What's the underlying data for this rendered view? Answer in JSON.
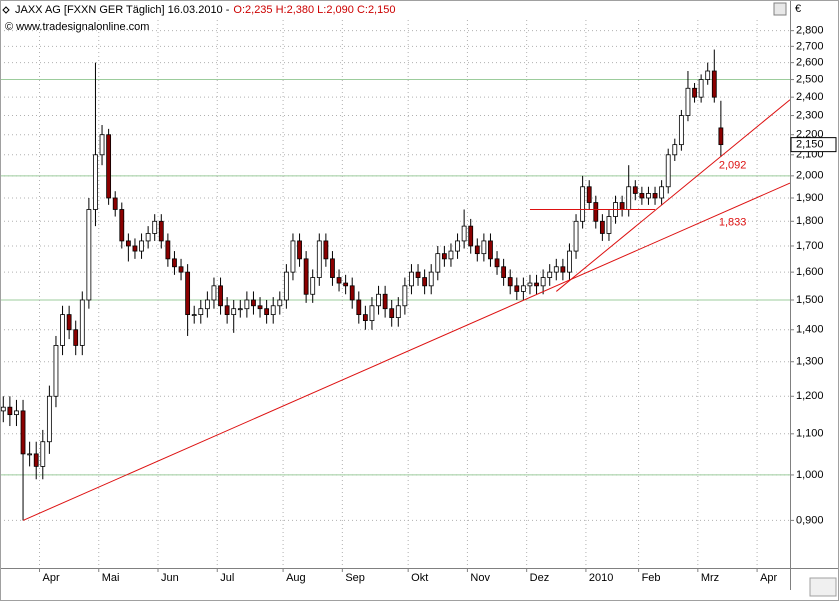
{
  "header": {
    "symbol": "JAXX AG [FXXN GER  Täglich] 16.03.2010 -",
    "ohlc": "O:2,235 H:2,380 L:2,090 C:2,150",
    "copyright": "© www.tradesignalonline.com",
    "currency": "€"
  },
  "chart_data": {
    "type": "candlestick",
    "categories": [
      null,
      null,
      null,
      null,
      null,
      null,
      "Apr",
      null,
      null,
      null,
      null,
      null,
      null,
      null,
      null,
      "Mai",
      null,
      null,
      null,
      null,
      null,
      null,
      null,
      null,
      "Jun",
      null,
      null,
      null,
      null,
      null,
      null,
      null,
      null,
      "Jul",
      null,
      null,
      null,
      null,
      null,
      null,
      null,
      null,
      null,
      "Aug",
      null,
      null,
      null,
      null,
      null,
      null,
      null,
      null,
      "Sep",
      null,
      null,
      null,
      null,
      null,
      null,
      null,
      null,
      null,
      "Okt",
      null,
      null,
      null,
      null,
      null,
      null,
      null,
      null,
      "Nov",
      null,
      null,
      null,
      null,
      null,
      null,
      null,
      null,
      "Dez",
      null,
      null,
      null,
      null,
      null,
      null,
      null,
      null,
      "2010",
      null,
      null,
      null,
      null,
      null,
      null,
      null,
      "Feb",
      null,
      null,
      null,
      null,
      null,
      null,
      null,
      null,
      "Mrz",
      null,
      null,
      null,
      null,
      null,
      null,
      null,
      null,
      "Apr",
      null,
      null,
      null,
      null
    ],
    "open": [
      1.16,
      1.17,
      1.15,
      1.16,
      1.05,
      1.05,
      1.02,
      1.08,
      1.2,
      1.35,
      1.45,
      1.4,
      1.35,
      1.5,
      1.85,
      2.1,
      2.2,
      1.9,
      1.85,
      1.72,
      1.7,
      1.68,
      1.72,
      1.75,
      1.8,
      1.72,
      1.65,
      1.62,
      1.6,
      1.45,
      1.45,
      1.47,
      1.5,
      1.55,
      1.48,
      1.45,
      1.47,
      1.47,
      1.5,
      1.48,
      1.47,
      1.45,
      1.48,
      1.5,
      1.6,
      1.72,
      1.65,
      1.52,
      1.58,
      1.72,
      1.65,
      1.58,
      1.56,
      1.55,
      1.5,
      1.45,
      1.43,
      1.48,
      1.52,
      1.47,
      1.44,
      1.48,
      1.55,
      1.6,
      1.58,
      1.55,
      1.6,
      1.67,
      1.65,
      1.68,
      1.72,
      1.78,
      1.7,
      1.67,
      1.72,
      1.65,
      1.62,
      1.58,
      1.55,
      1.53,
      1.55,
      1.56,
      1.55,
      1.58,
      1.6,
      1.62,
      1.6,
      1.68,
      1.8,
      1.95,
      1.88,
      1.8,
      1.75,
      1.82,
      1.88,
      1.85,
      1.95,
      1.92,
      1.9,
      1.92,
      1.9,
      1.95,
      2.1,
      2.15,
      2.3,
      2.45,
      2.4,
      2.5,
      2.55,
      2.235,
      null,
      null,
      null,
      null,
      null,
      null,
      null,
      null,
      null,
      null
    ],
    "high": [
      1.2,
      1.2,
      1.19,
      1.19,
      1.08,
      1.08,
      1.11,
      1.23,
      1.38,
      1.48,
      1.48,
      1.43,
      1.53,
      1.9,
      2.6,
      2.25,
      2.23,
      1.93,
      1.88,
      1.75,
      1.73,
      1.75,
      1.78,
      1.83,
      1.83,
      1.75,
      1.68,
      1.65,
      1.63,
      1.48,
      1.5,
      1.53,
      1.58,
      1.58,
      1.51,
      1.5,
      1.5,
      1.53,
      1.53,
      1.51,
      1.5,
      1.51,
      1.53,
      1.63,
      1.75,
      1.75,
      1.68,
      1.61,
      1.75,
      1.75,
      1.68,
      1.61,
      1.59,
      1.58,
      1.53,
      1.48,
      1.51,
      1.55,
      1.55,
      1.5,
      1.51,
      1.58,
      1.63,
      1.63,
      1.61,
      1.63,
      1.7,
      1.7,
      1.71,
      1.75,
      1.85,
      1.81,
      1.73,
      1.75,
      1.75,
      1.68,
      1.65,
      1.61,
      1.58,
      1.58,
      1.59,
      1.59,
      1.61,
      1.63,
      1.65,
      1.65,
      1.71,
      1.83,
      2.0,
      1.98,
      1.91,
      1.83,
      1.85,
      1.91,
      1.91,
      2.05,
      1.98,
      1.95,
      1.95,
      1.95,
      1.98,
      2.13,
      2.18,
      2.33,
      2.55,
      2.48,
      2.53,
      2.6,
      2.68,
      2.38,
      null,
      null,
      null,
      null,
      null,
      null,
      null,
      null,
      null,
      null
    ],
    "low": [
      1.13,
      1.12,
      1.12,
      0.9,
      1.02,
      0.99,
      0.99,
      1.05,
      1.17,
      1.32,
      1.37,
      1.32,
      1.32,
      1.47,
      1.78,
      2.05,
      1.87,
      1.82,
      1.69,
      1.64,
      1.65,
      1.65,
      1.69,
      1.72,
      1.69,
      1.62,
      1.59,
      1.57,
      1.38,
      1.42,
      1.42,
      1.44,
      1.47,
      1.45,
      1.42,
      1.39,
      1.44,
      1.44,
      1.45,
      1.44,
      1.42,
      1.42,
      1.45,
      1.47,
      1.57,
      1.62,
      1.49,
      1.49,
      1.55,
      1.62,
      1.55,
      1.53,
      1.52,
      1.47,
      1.42,
      1.4,
      1.4,
      1.45,
      1.44,
      1.41,
      1.41,
      1.45,
      1.52,
      1.55,
      1.52,
      1.52,
      1.57,
      1.62,
      1.62,
      1.65,
      1.69,
      1.67,
      1.64,
      1.64,
      1.62,
      1.59,
      1.55,
      1.52,
      1.5,
      1.5,
      1.52,
      1.52,
      1.52,
      1.55,
      1.57,
      1.57,
      1.57,
      1.65,
      1.77,
      1.85,
      1.77,
      1.72,
      1.72,
      1.79,
      1.82,
      1.82,
      1.89,
      1.87,
      1.87,
      1.87,
      1.87,
      1.92,
      2.07,
      2.12,
      2.27,
      2.37,
      2.37,
      2.47,
      2.37,
      2.09,
      null,
      null,
      null,
      null,
      null,
      null,
      null,
      null,
      null,
      null
    ],
    "close": [
      1.17,
      1.15,
      1.16,
      1.05,
      1.05,
      1.02,
      1.08,
      1.2,
      1.35,
      1.45,
      1.4,
      1.35,
      1.5,
      1.85,
      2.1,
      2.2,
      1.9,
      1.85,
      1.72,
      1.7,
      1.68,
      1.72,
      1.75,
      1.8,
      1.72,
      1.65,
      1.62,
      1.6,
      1.45,
      1.45,
      1.47,
      1.5,
      1.55,
      1.48,
      1.45,
      1.47,
      1.47,
      1.5,
      1.48,
      1.47,
      1.45,
      1.48,
      1.5,
      1.6,
      1.72,
      1.65,
      1.52,
      1.58,
      1.72,
      1.65,
      1.58,
      1.56,
      1.55,
      1.5,
      1.45,
      1.43,
      1.48,
      1.52,
      1.47,
      1.44,
      1.48,
      1.55,
      1.6,
      1.58,
      1.55,
      1.6,
      1.67,
      1.65,
      1.68,
      1.72,
      1.78,
      1.7,
      1.67,
      1.72,
      1.65,
      1.62,
      1.58,
      1.55,
      1.53,
      1.55,
      1.56,
      1.55,
      1.58,
      1.6,
      1.62,
      1.6,
      1.68,
      1.8,
      1.95,
      1.88,
      1.8,
      1.75,
      1.82,
      1.88,
      1.85,
      1.95,
      1.92,
      1.9,
      1.92,
      1.9,
      1.95,
      2.1,
      2.15,
      2.3,
      2.45,
      2.4,
      2.5,
      2.55,
      2.4,
      2.15,
      null,
      null,
      null,
      null,
      null,
      null,
      null,
      null,
      null,
      null
    ],
    "up_color": "#ffffff",
    "down_color": "#8b0000",
    "log_scale": true,
    "ylim": [
      0.806,
      2.87
    ],
    "yticks": [
      {
        "value": 0.9,
        "label": "0,900"
      },
      {
        "value": 1.0,
        "label": "1,000"
      },
      {
        "value": 1.1,
        "label": "1,100"
      },
      {
        "value": 1.2,
        "label": "1,200"
      },
      {
        "value": 1.3,
        "label": "1,300"
      },
      {
        "value": 1.4,
        "label": "1,400"
      },
      {
        "value": 1.5,
        "label": "1,500"
      },
      {
        "value": 1.6,
        "label": "1,600"
      },
      {
        "value": 1.7,
        "label": "1,700"
      },
      {
        "value": 1.8,
        "label": "1,800"
      },
      {
        "value": 1.9,
        "label": "1,900"
      },
      {
        "value": 2.0,
        "label": "2,000"
      },
      {
        "value": 2.1,
        "label": "2,100"
      },
      {
        "value": 2.2,
        "label": "2,200"
      },
      {
        "value": 2.3,
        "label": "2,300"
      },
      {
        "value": 2.4,
        "label": "2,400"
      },
      {
        "value": 2.5,
        "label": "2,500"
      },
      {
        "value": 2.6,
        "label": "2,600"
      },
      {
        "value": 2.7,
        "label": "2,700"
      },
      {
        "value": 2.8,
        "label": "2,800"
      }
    ],
    "major_grid": [
      1.0,
      1.5,
      2.0,
      2.5
    ],
    "major_grid_color": "#9ccc9c",
    "grid": true,
    "trendlines": [
      {
        "x": [
          3,
          109
        ],
        "values": [
          0.9,
          1.833
        ],
        "label": "1,833",
        "extend": true
      },
      {
        "x": [
          84,
          109
        ],
        "values": [
          1.53,
          2.092
        ],
        "label": "2,092",
        "extend": true
      },
      {
        "x": [
          80,
          99
        ],
        "values": [
          1.85,
          1.85
        ],
        "extend": false
      }
    ],
    "trend_color": "#dd1111",
    "last_price": {
      "value": 2.15,
      "label": "2,150"
    }
  }
}
